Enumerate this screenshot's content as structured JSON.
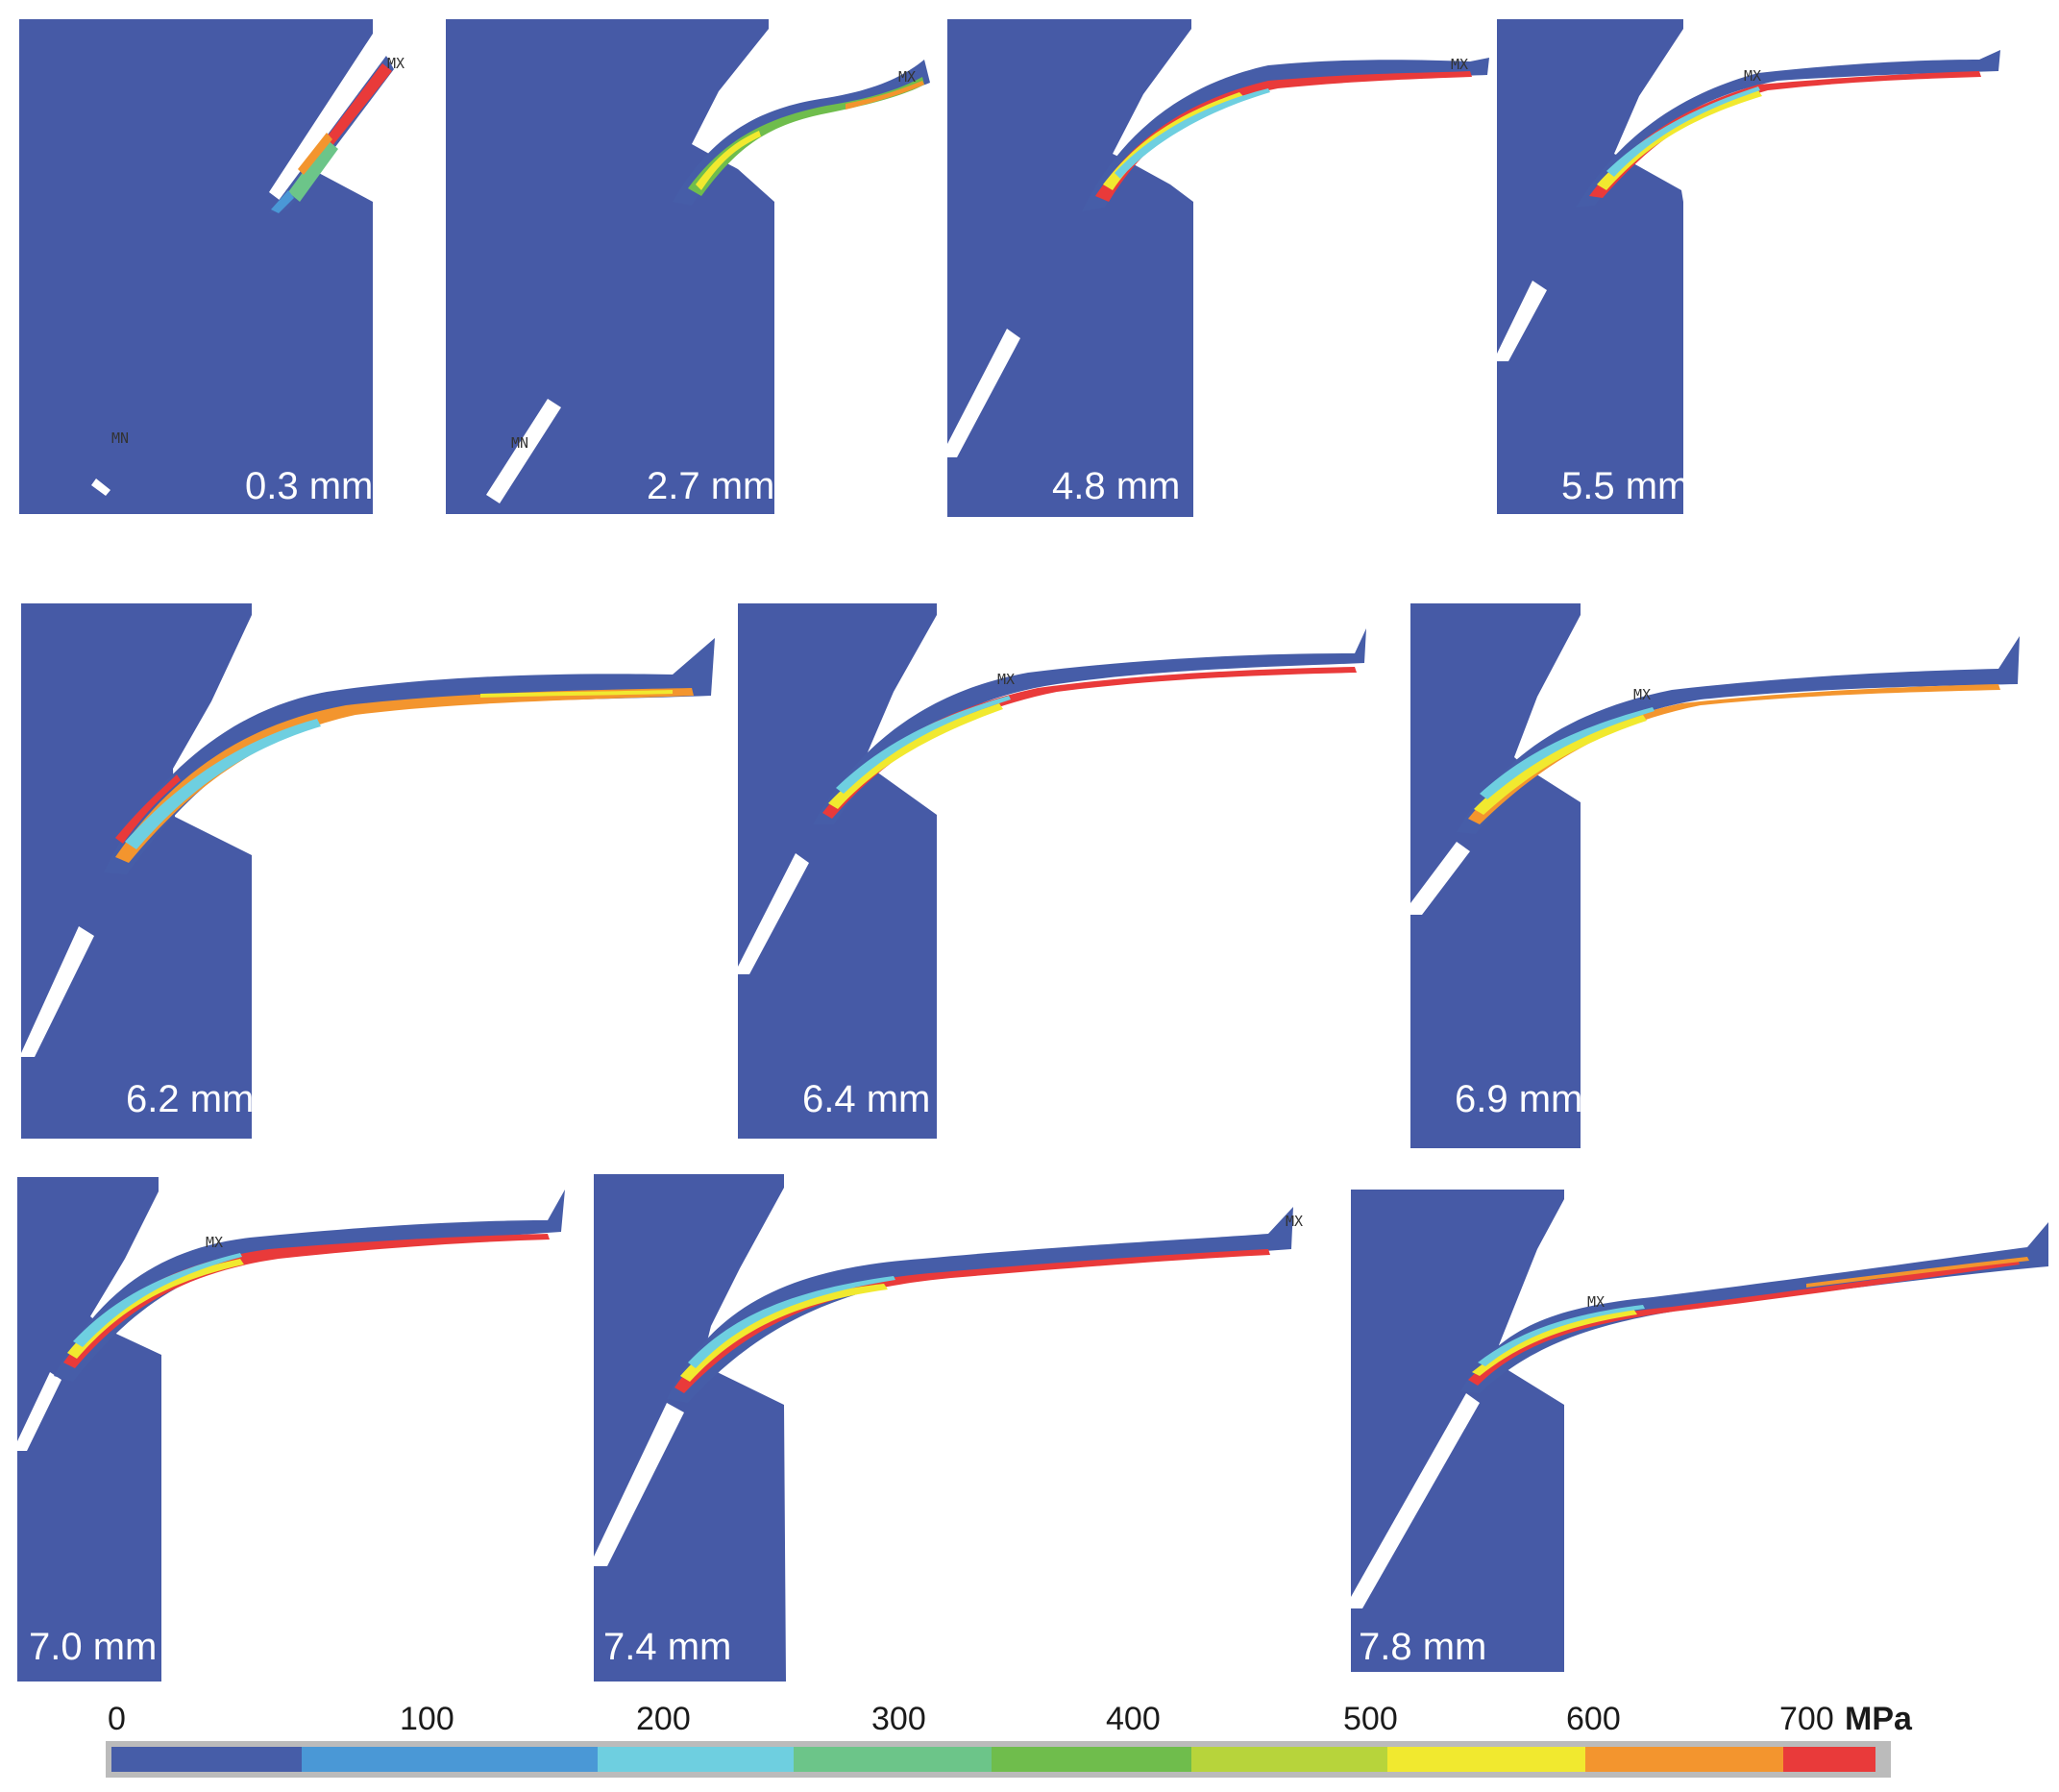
{
  "panels": [
    {
      "label": "0.3 mm",
      "mx": "MX",
      "mn": "MN"
    },
    {
      "label": "2.7 mm",
      "mx": "MX",
      "mn": "MN"
    },
    {
      "label": "4.8 mm",
      "mx": "MX"
    },
    {
      "label": "5.5 mm",
      "mx": "MX"
    },
    {
      "label": "6.2 mm"
    },
    {
      "label": "6.4 mm",
      "mx": "MX"
    },
    {
      "label": "6.9 mm",
      "mx": "MX"
    },
    {
      "label": "7.0 mm",
      "mx": "MX"
    },
    {
      "label": "7.4 mm",
      "mx": "MX"
    },
    {
      "label": "7.8 mm",
      "mx": "MX"
    }
  ],
  "colorbar": {
    "ticks": [
      "0",
      "100",
      "200",
      "300",
      "400",
      "500",
      "600",
      "700"
    ],
    "unit": "MPa",
    "colors": [
      "#465da8",
      "#4a98d6",
      "#6ecfe0",
      "#6cc589",
      "#6fbd4c",
      "#b7d43b",
      "#f1e92f",
      "#f3952e",
      "#e93a3a"
    ]
  },
  "colors": {
    "tool": "#465aa6",
    "background": "#ffffff"
  }
}
